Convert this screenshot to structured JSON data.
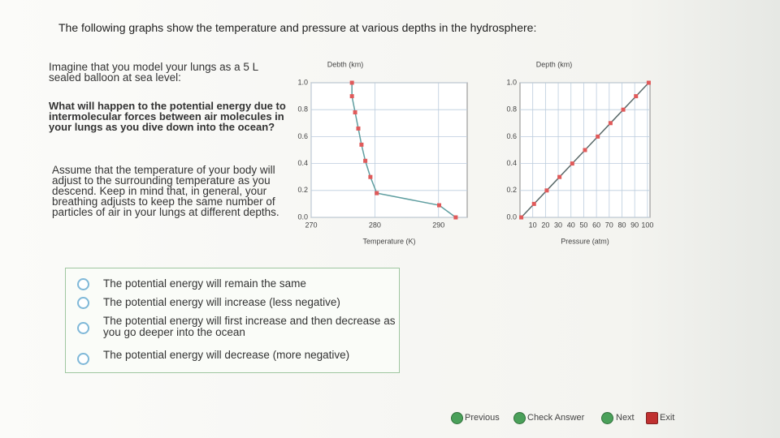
{
  "header": {
    "title": "The following graphs show the temperature and pressure at various depths in the hydrosphere:"
  },
  "question": {
    "intro": "Imagine that you model your lungs as a 5 L sealed balloon at sea level:",
    "prompt": "What will happen to the potential energy due to intermolecular forces between air molecules in your lungs as you dive down into the ocean?",
    "note": "Assume that the temperature of your body will adjust to the surrounding temperature as you descend. Keep in mind that, in general, your breathing adjusts to keep the same number of particles of air in your lungs at different depths."
  },
  "chart_data": [
    {
      "type": "line",
      "y_label": "Debth (km)",
      "x_label": "Temperature (K)",
      "x": [
        276.4,
        276.4,
        276.9,
        277.4,
        277.9,
        278.5,
        279.3,
        280.3,
        290.1,
        292.7
      ],
      "series": [
        {
          "color": "#5f9ea0",
          "marker_color": "#e05a5a",
          "values": [
            1,
            0.9,
            0.78,
            0.66,
            0.54,
            0.42,
            0.3,
            0.18,
            0.09,
            0
          ]
        }
      ],
      "xlim": [
        270,
        294.5
      ],
      "xticks": [
        270,
        280,
        290
      ],
      "ylim": [
        0,
        1
      ],
      "yticks": [
        {
          "value": 0,
          "label": "0.0"
        },
        0.2,
        0.4,
        0.6,
        0.8,
        {
          "value": 1,
          "label": "1.0"
        }
      ],
      "grid": true
    },
    {
      "type": "line",
      "y_label": "Depth (km)",
      "x_label": "Pressure (atm)",
      "x": [
        1,
        11,
        21,
        31,
        41,
        51,
        61,
        71,
        81,
        91,
        101
      ],
      "series": [
        {
          "color": "#5a6a6a",
          "marker_color": "#e05a5a",
          "values": [
            0,
            0.1,
            0.2,
            0.3,
            0.4,
            0.5,
            0.6,
            0.7,
            0.8,
            0.9,
            1
          ]
        }
      ],
      "xlim": [
        0,
        102
      ],
      "xticks": [
        10,
        20,
        30,
        40,
        50,
        60,
        70,
        80,
        90,
        100
      ],
      "ylim": [
        0,
        1
      ],
      "yticks": [
        {
          "value": 0,
          "label": "0.0"
        },
        0.2,
        0.4,
        0.6,
        0.8,
        {
          "value": 1,
          "label": "1.0"
        }
      ],
      "grid": true
    }
  ],
  "options": [
    "The potential energy will remain the same",
    "The potential energy will increase (less negative)",
    "The potential energy will first increase and then decrease as you go deeper into the ocean",
    "The potential energy will decrease (more negative)"
  ],
  "buttons": [
    "Previous",
    "Check Answer",
    "Next",
    "Exit"
  ]
}
